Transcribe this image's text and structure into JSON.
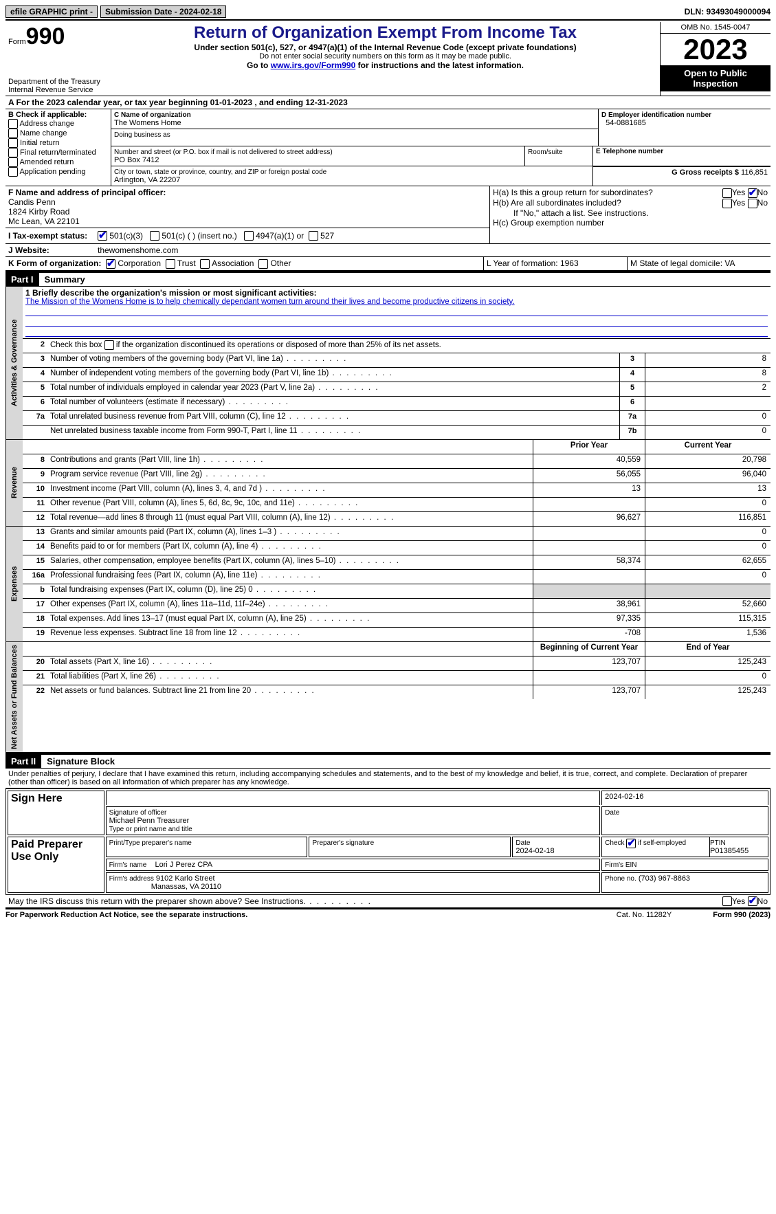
{
  "topbar": {
    "efile": "efile GRAPHIC print -",
    "submission": "Submission Date - 2024-02-18",
    "dln": "DLN: 93493049000094"
  },
  "header": {
    "form_label": "Form",
    "form_number": "990",
    "dept": "Department of the Treasury Internal Revenue Service",
    "title": "Return of Organization Exempt From Income Tax",
    "sub1": "Under section 501(c), 527, or 4947(a)(1) of the Internal Revenue Code (except private foundations)",
    "sub2": "Do not enter social security numbers on this form as it may be made public.",
    "sub3_pre": "Go to ",
    "sub3_link": "www.irs.gov/Form990",
    "sub3_post": " for instructions and the latest information.",
    "omb": "OMB No. 1545-0047",
    "year": "2023",
    "inspect": "Open to Public Inspection"
  },
  "line_a": "A For the 2023 calendar year, or tax year beginning 01-01-2023    , and ending 12-31-2023",
  "box_b": {
    "title": "B Check if applicable:",
    "items": [
      "Address change",
      "Name change",
      "Initial return",
      "Final return/terminated",
      "Amended return",
      "Application pending"
    ]
  },
  "box_c": {
    "name_lbl": "C Name of organization",
    "name": "The Womens Home",
    "dba_lbl": "Doing business as",
    "dba": "",
    "addr_lbl": "Number and street (or P.O. box if mail is not delivered to street address)",
    "addr": "PO Box 7412",
    "room_lbl": "Room/suite",
    "city_lbl": "City or town, state or province, country, and ZIP or foreign postal code",
    "city": "Arlington, VA   22207"
  },
  "box_d": {
    "lbl": "D Employer identification number",
    "val": "54-0881685"
  },
  "box_e": {
    "lbl": "E Telephone number",
    "val": ""
  },
  "box_g": {
    "lbl": "G Gross receipts $",
    "val": "116,851"
  },
  "box_f": {
    "lbl": "F  Name and address of principal officer:",
    "name": "Candis Penn",
    "addr1": "1824 Kirby Road",
    "addr2": "Mc Lean, VA  22101"
  },
  "box_h": {
    "ha": "H(a)  Is this a group return for subordinates?",
    "hb": "H(b)  Are all subordinates included?",
    "hb_note": "If \"No,\" attach a list. See instructions.",
    "hc": "H(c)  Group exemption number"
  },
  "tax_status": {
    "lbl": "I   Tax-exempt status:",
    "opts": [
      "501(c)(3)",
      "501(c) (  ) (insert no.)",
      "4947(a)(1) or",
      "527"
    ]
  },
  "website": {
    "lbl": "J   Website:",
    "val": "thewomenshome.com"
  },
  "box_k": {
    "lbl": "K Form of organization:",
    "opts": [
      "Corporation",
      "Trust",
      "Association",
      "Other"
    ]
  },
  "box_l": "L Year of formation: 1963",
  "box_m": "M State of legal domicile: VA",
  "part1": {
    "hdr": "Part I",
    "title": "Summary"
  },
  "mission_lbl": "1   Briefly describe the organization's mission or most significant activities:",
  "mission": "The Mission of the Womens Home is to help chemically dependant women turn around their lives and become productive citizens in society.",
  "line2": "Check this box          if the organization discontinued its operations or disposed of more than 25% of its net assets.",
  "governance": [
    {
      "n": "3",
      "d": "Number of voting members of the governing body (Part VI, line 1a)",
      "c": "3",
      "v": "8"
    },
    {
      "n": "4",
      "d": "Number of independent voting members of the governing body (Part VI, line 1b)",
      "c": "4",
      "v": "8"
    },
    {
      "n": "5",
      "d": "Total number of individuals employed in calendar year 2023 (Part V, line 2a)",
      "c": "5",
      "v": "2"
    },
    {
      "n": "6",
      "d": "Total number of volunteers (estimate if necessary)",
      "c": "6",
      "v": ""
    },
    {
      "n": "7a",
      "d": "Total unrelated business revenue from Part VIII, column (C), line 12",
      "c": "7a",
      "v": "0"
    },
    {
      "n": "",
      "d": "Net unrelated business taxable income from Form 990-T, Part I, line 11",
      "c": "7b",
      "v": "0"
    }
  ],
  "col_headers": {
    "prior": "Prior Year",
    "current": "Current Year",
    "begin": "Beginning of Current Year",
    "end": "End of Year"
  },
  "revenue": [
    {
      "n": "8",
      "d": "Contributions and grants (Part VIII, line 1h)",
      "p": "40,559",
      "c": "20,798"
    },
    {
      "n": "9",
      "d": "Program service revenue (Part VIII, line 2g)",
      "p": "56,055",
      "c": "96,040"
    },
    {
      "n": "10",
      "d": "Investment income (Part VIII, column (A), lines 3, 4, and 7d )",
      "p": "13",
      "c": "13"
    },
    {
      "n": "11",
      "d": "Other revenue (Part VIII, column (A), lines 5, 6d, 8c, 9c, 10c, and 11e)",
      "p": "",
      "c": "0"
    },
    {
      "n": "12",
      "d": "Total revenue—add lines 8 through 11 (must equal Part VIII, column (A), line 12)",
      "p": "96,627",
      "c": "116,851"
    }
  ],
  "expenses": [
    {
      "n": "13",
      "d": "Grants and similar amounts paid (Part IX, column (A), lines 1–3 )",
      "p": "",
      "c": "0"
    },
    {
      "n": "14",
      "d": "Benefits paid to or for members (Part IX, column (A), line 4)",
      "p": "",
      "c": "0"
    },
    {
      "n": "15",
      "d": "Salaries, other compensation, employee benefits (Part IX, column (A), lines 5–10)",
      "p": "58,374",
      "c": "62,655"
    },
    {
      "n": "16a",
      "d": "Professional fundraising fees (Part IX, column (A), line 11e)",
      "p": "",
      "c": "0"
    },
    {
      "n": "b",
      "d": "Total fundraising expenses (Part IX, column (D), line 25) 0",
      "p": "GREY",
      "c": "GREY"
    },
    {
      "n": "17",
      "d": "Other expenses (Part IX, column (A), lines 11a–11d, 11f–24e)",
      "p": "38,961",
      "c": "52,660"
    },
    {
      "n": "18",
      "d": "Total expenses. Add lines 13–17 (must equal Part IX, column (A), line 25)",
      "p": "97,335",
      "c": "115,315"
    },
    {
      "n": "19",
      "d": "Revenue less expenses. Subtract line 18 from line 12",
      "p": "-708",
      "c": "1,536"
    }
  ],
  "netassets": [
    {
      "n": "20",
      "d": "Total assets (Part X, line 16)",
      "p": "123,707",
      "c": "125,243"
    },
    {
      "n": "21",
      "d": "Total liabilities (Part X, line 26)",
      "p": "",
      "c": "0"
    },
    {
      "n": "22",
      "d": "Net assets or fund balances. Subtract line 21 from line 20",
      "p": "123,707",
      "c": "125,243"
    }
  ],
  "part2": {
    "hdr": "Part II",
    "title": "Signature Block"
  },
  "perjury": "Under penalties of perjury, I declare that I have examined this return, including accompanying schedules and statements, and to the best of my knowledge and belief, it is true, correct, and complete. Declaration of preparer (other than officer) is based on all information of which preparer has any knowledge.",
  "sign": {
    "here": "Sign Here",
    "sig_lbl": "Signature of officer",
    "date_lbl": "Date",
    "date": "2024-02-16",
    "officer": "Michael Penn Treasurer",
    "type_lbl": "Type or print name and title"
  },
  "preparer": {
    "title": "Paid Preparer Use Only",
    "name_lbl": "Print/Type preparer's name",
    "sig_lbl": "Preparer's signature",
    "date_lbl": "Date",
    "date": "2024-02-18",
    "self_lbl": "Check         if self-employed",
    "ptin_lbl": "PTIN",
    "ptin": "P01385455",
    "firm_name_lbl": "Firm's name",
    "firm_name": "Lori J Perez CPA",
    "firm_ein_lbl": "Firm's EIN",
    "firm_addr_lbl": "Firm's address",
    "firm_addr1": "9102 Karlo Street",
    "firm_addr2": "Manassas, VA  20110",
    "phone_lbl": "Phone no.",
    "phone": "(703) 967-8863"
  },
  "discuss": "May the IRS discuss this return with the preparer shown above? See Instructions.",
  "footer": {
    "paperwork": "For Paperwork Reduction Act Notice, see the separate instructions.",
    "cat": "Cat. No. 11282Y",
    "form": "Form 990 (2023)"
  },
  "vtabs": {
    "gov": "Activities & Governance",
    "rev": "Revenue",
    "exp": "Expenses",
    "net": "Net Assets or Fund Balances"
  }
}
